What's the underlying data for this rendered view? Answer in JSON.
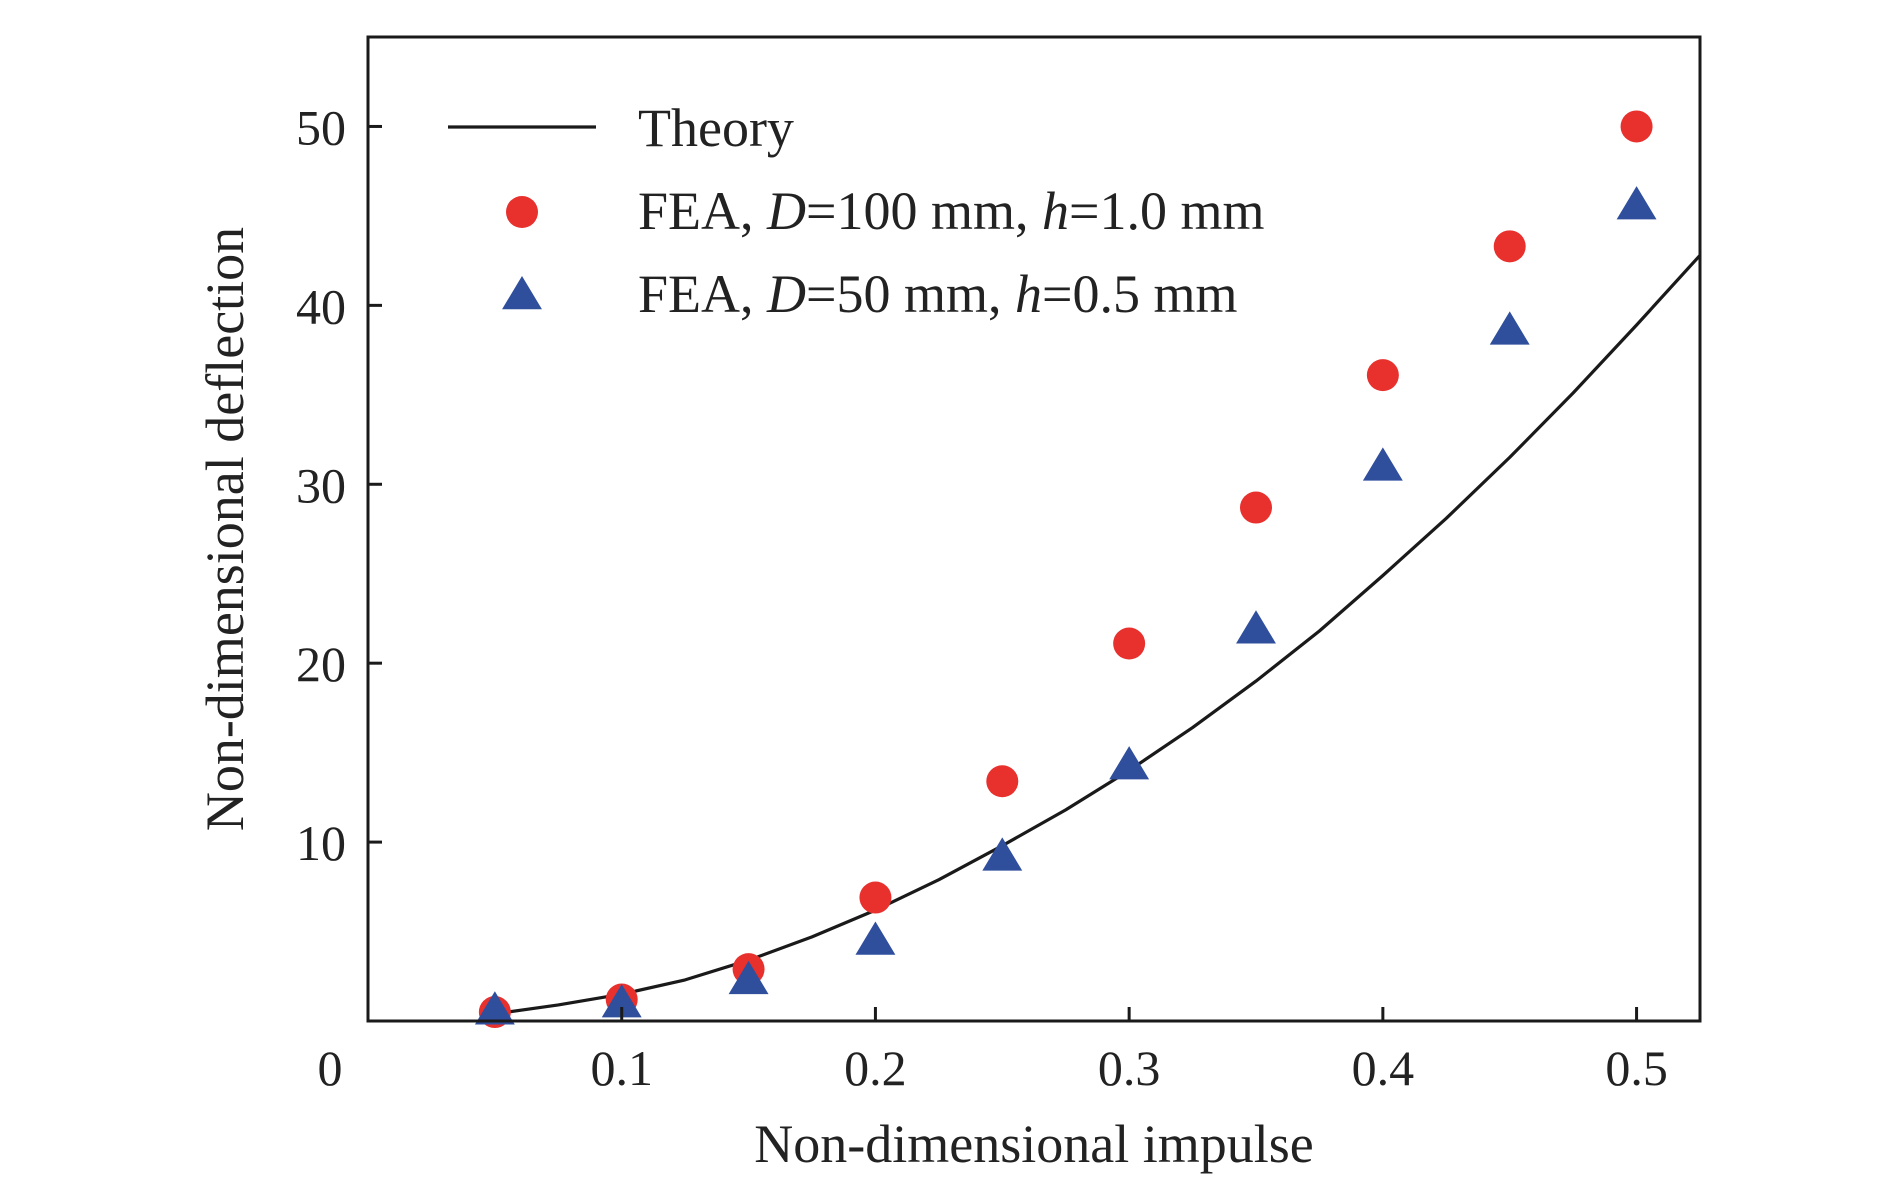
{
  "chart_data": {
    "type": "scatter",
    "xlabel": "Non-dimensional impulse",
    "ylabel": "Non-dimensional deflection",
    "xlim": [
      0,
      0.525
    ],
    "ylim": [
      0,
      55
    ],
    "grid": false,
    "legend_position": "top-left",
    "x_ticks": [
      {
        "value": 0,
        "label": "0"
      },
      {
        "value": 0.1,
        "label": "0.1"
      },
      {
        "value": 0.2,
        "label": "0.2"
      },
      {
        "value": 0.3,
        "label": "0.3"
      },
      {
        "value": 0.4,
        "label": "0.4"
      },
      {
        "value": 0.5,
        "label": "0.5"
      }
    ],
    "y_ticks": [
      {
        "value": 10,
        "label": "10"
      },
      {
        "value": 20,
        "label": "20"
      },
      {
        "value": 30,
        "label": "30"
      },
      {
        "value": 40,
        "label": "40"
      },
      {
        "value": 50,
        "label": "50"
      }
    ],
    "series": [
      {
        "name": "Theory",
        "kind": "line",
        "color": "#1a1a1a",
        "x": [
          0.05,
          0.075,
          0.1,
          0.125,
          0.15,
          0.175,
          0.2,
          0.225,
          0.25,
          0.275,
          0.3,
          0.325,
          0.35,
          0.375,
          0.4,
          0.425,
          0.45,
          0.475,
          0.5,
          0.525
        ],
        "y": [
          0.4,
          0.9,
          1.5,
          2.3,
          3.4,
          4.7,
          6.2,
          7.9,
          9.8,
          11.8,
          14.0,
          16.4,
          19.0,
          21.8,
          24.9,
          28.1,
          31.5,
          35.1,
          38.9,
          42.8
        ]
      },
      {
        "name": "FEA, D=100 mm, h=1.0 mm",
        "label_parts": [
          {
            "text": "FEA, ",
            "italic": false
          },
          {
            "text": "D",
            "italic": true
          },
          {
            "text": "=100 mm, ",
            "italic": false
          },
          {
            "text": "h",
            "italic": true
          },
          {
            "text": "=1.0 mm",
            "italic": false
          }
        ],
        "kind": "scatter",
        "marker": "circle",
        "color": "#e8302d",
        "x": [
          0.05,
          0.1,
          0.15,
          0.2,
          0.25,
          0.3,
          0.35,
          0.4,
          0.45,
          0.5
        ],
        "y": [
          0.5,
          1.2,
          2.9,
          6.9,
          13.4,
          21.1,
          28.7,
          36.1,
          43.3,
          50.0
        ]
      },
      {
        "name": "FEA, D=50 mm, h=0.5 mm",
        "label_parts": [
          {
            "text": "FEA, ",
            "italic": false
          },
          {
            "text": "D",
            "italic": true
          },
          {
            "text": "=50 mm, ",
            "italic": false
          },
          {
            "text": "h",
            "italic": true
          },
          {
            "text": "=0.5 mm",
            "italic": false
          }
        ],
        "kind": "scatter",
        "marker": "triangle",
        "color": "#2f4f9d",
        "x": [
          0.05,
          0.1,
          0.15,
          0.2,
          0.25,
          0.3,
          0.35,
          0.4,
          0.45,
          0.5
        ],
        "y": [
          0.6,
          1.0,
          2.3,
          4.5,
          9.2,
          14.3,
          21.9,
          31.0,
          38.6,
          45.6
        ]
      }
    ]
  }
}
